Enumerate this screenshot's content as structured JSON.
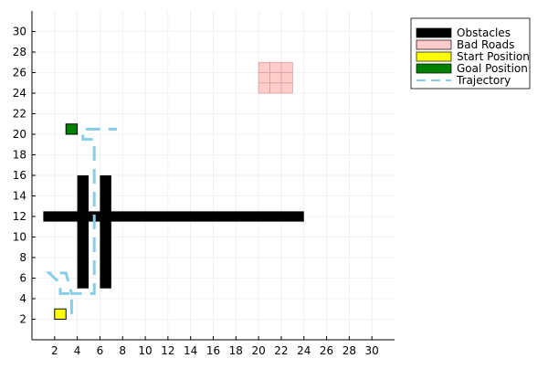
{
  "chart_data": {
    "type": "scatter",
    "title": "",
    "xlabel": "",
    "ylabel": "",
    "xlim": [
      0,
      32
    ],
    "ylim": [
      0,
      32
    ],
    "x_ticks": [
      2,
      4,
      6,
      8,
      10,
      12,
      14,
      16,
      18,
      20,
      22,
      24,
      26,
      28,
      30
    ],
    "y_ticks": [
      2,
      4,
      6,
      8,
      10,
      12,
      14,
      16,
      18,
      20,
      22,
      24,
      26,
      28,
      30
    ],
    "grid": true,
    "legend_position": "top-right outside",
    "legend": [
      {
        "label": "Obstacles",
        "kind": "box",
        "color": "#000000"
      },
      {
        "label": "Bad Roads",
        "kind": "box",
        "color": "#ffcccc"
      },
      {
        "label": "Start Position",
        "kind": "box",
        "color": "#ffff00"
      },
      {
        "label": "Goal Position",
        "kind": "box",
        "color": "#008000"
      },
      {
        "label": "Trajectory",
        "kind": "dashed-line",
        "color": "#87ceeb"
      }
    ],
    "obstacles": [
      {
        "x0": 1,
        "x1": 24,
        "y0": 11.5,
        "y1": 12.5
      },
      {
        "x0": 4,
        "x1": 5,
        "y0": 5,
        "y1": 16
      },
      {
        "x0": 6,
        "x1": 7,
        "y0": 5,
        "y1": 16
      }
    ],
    "bad_road_cells": [
      {
        "x": 20,
        "y": 24
      },
      {
        "x": 21,
        "y": 24
      },
      {
        "x": 22,
        "y": 24
      },
      {
        "x": 20,
        "y": 25
      },
      {
        "x": 21,
        "y": 25
      },
      {
        "x": 22,
        "y": 25
      },
      {
        "x": 20,
        "y": 26
      },
      {
        "x": 21,
        "y": 26
      },
      {
        "x": 22,
        "y": 26
      }
    ],
    "start": {
      "x0": 2,
      "x1": 3,
      "y0": 2,
      "y1": 3
    },
    "goal": {
      "x0": 3,
      "x1": 4,
      "y0": 20,
      "y1": 21
    },
    "trajectory": [
      [
        3.5,
        2.5
      ],
      [
        3.5,
        3.2
      ],
      [
        3.5,
        4.5
      ],
      [
        2.5,
        4.5
      ],
      [
        2.5,
        5.5
      ],
      [
        1.5,
        6.5
      ],
      [
        3.0,
        6.5
      ],
      [
        3.5,
        4.5
      ],
      [
        5.5,
        4.5
      ],
      [
        5.5,
        11.5
      ],
      [
        5.5,
        18.5
      ],
      [
        5.5,
        19.5
      ],
      [
        4.5,
        19.5
      ],
      [
        4.5,
        20.5
      ],
      [
        7.5,
        20.5
      ]
    ]
  }
}
